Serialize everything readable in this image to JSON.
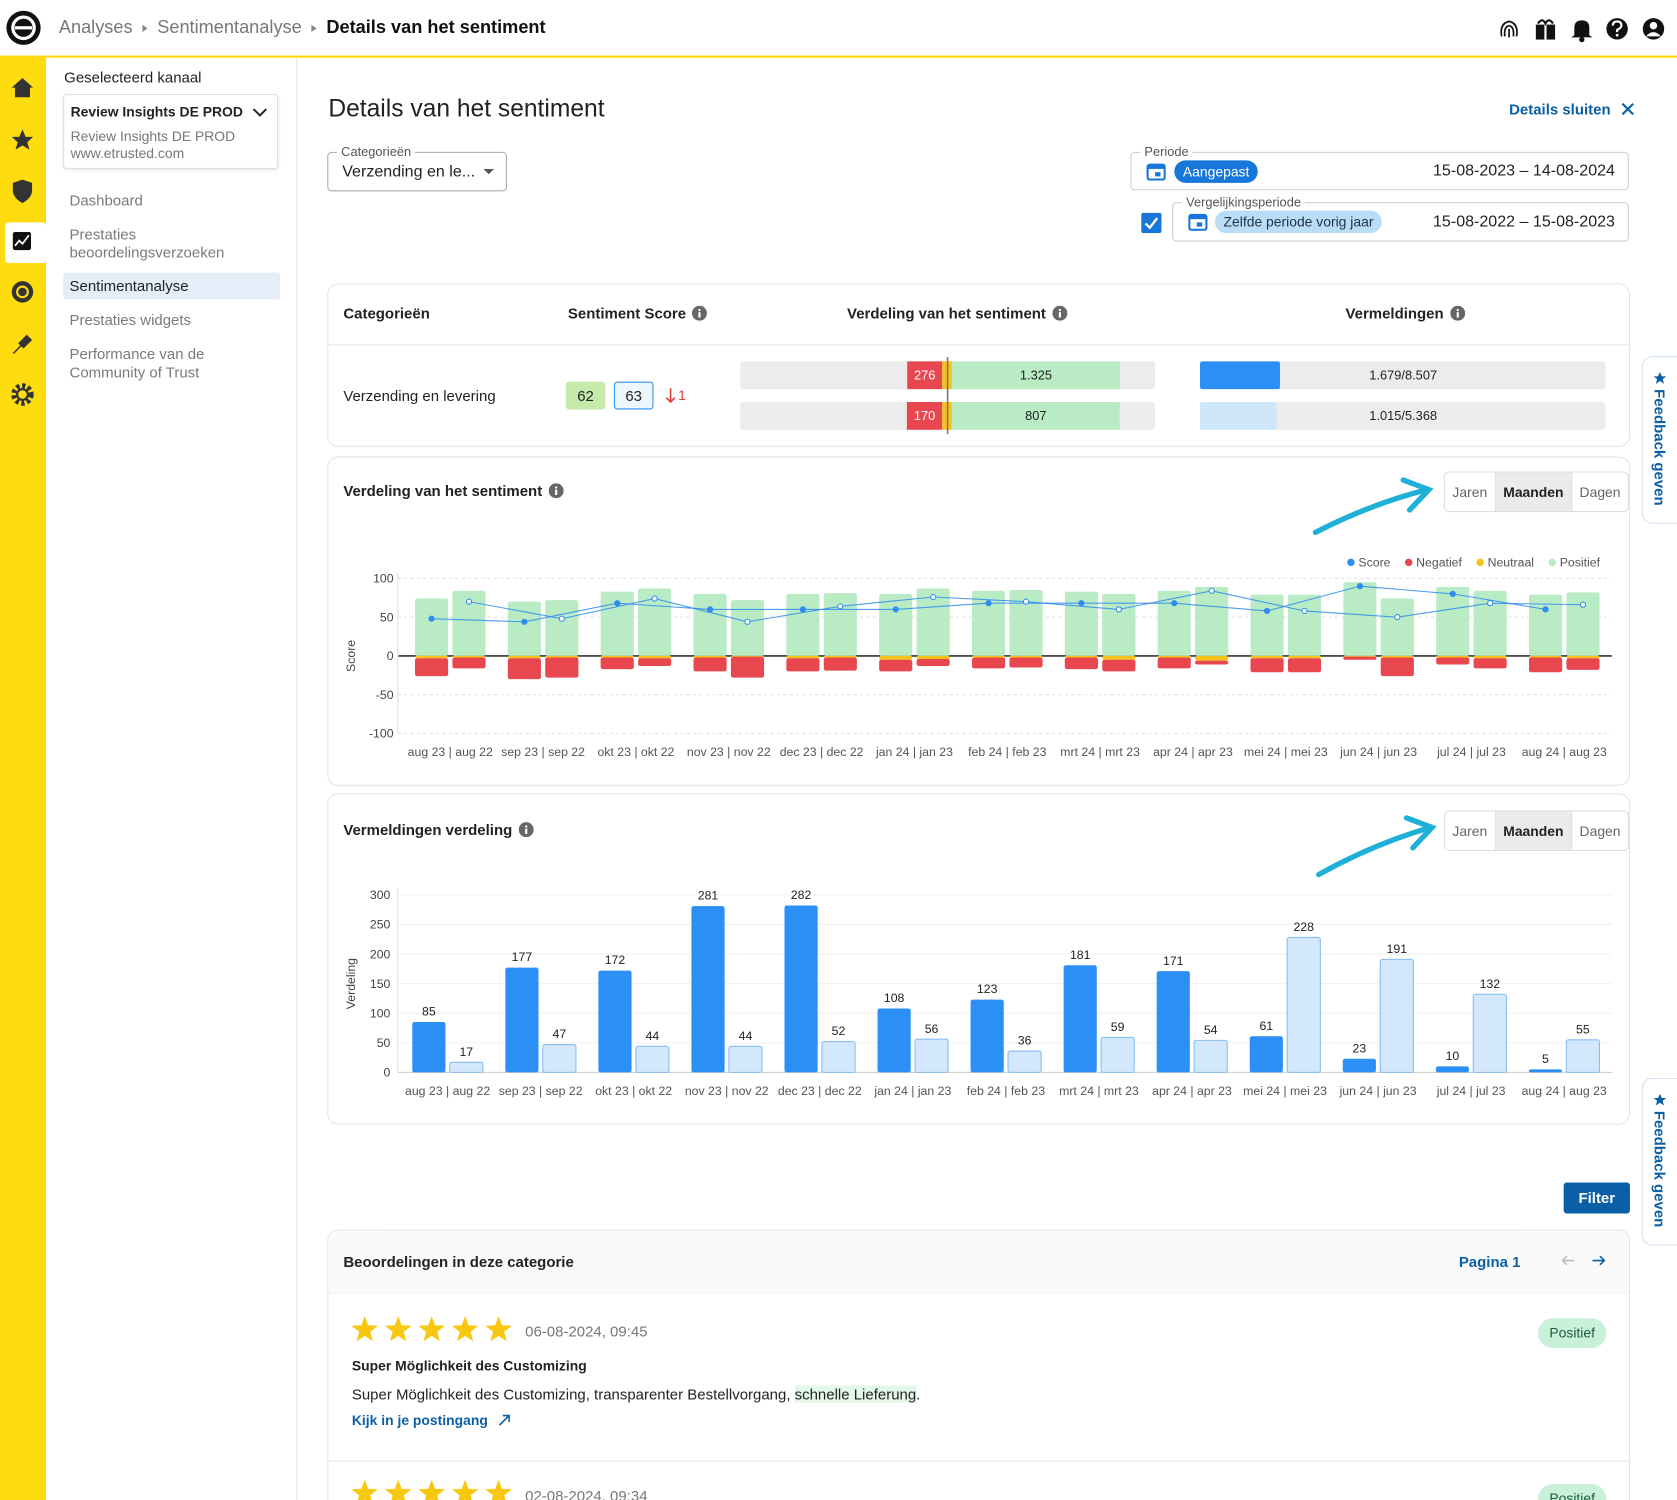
{
  "header": {
    "breadcrumb": [
      "Analyses",
      "Sentimentanalyse",
      "Details van het sentiment"
    ]
  },
  "sidebar": {
    "channel_label": "Geselecteerd kanaal",
    "channel_name": "Review Insights DE PROD",
    "channel_account": "Review Insights DE PROD",
    "channel_domain": "www.etrusted.com",
    "nav": [
      "Dashboard",
      "Prestaties beoordelingsverzoeken",
      "Sentimentanalyse",
      "Prestaties widgets",
      "Performance van de Community of Trust"
    ],
    "active_nav": 2
  },
  "page": {
    "title": "Details van het sentiment",
    "close": "Details sluiten"
  },
  "filters": {
    "category_label": "Categorieën",
    "category_value": "Verzending en le...",
    "period_label": "Periode",
    "period_chip": "Aangepast",
    "period_range": "15-08-2023 – 14-08-2024",
    "comparison_label": "Vergelijkingsperiode",
    "comparison_chip": "Zelfde periode vorig jaar",
    "comparison_range": "15-08-2022 – 15-08-2023",
    "comparison_enabled": true
  },
  "summary_table": {
    "headers": [
      "Categorieën",
      "Sentiment Score",
      "Verdeling van het sentiment",
      "Vermeldingen"
    ],
    "rows": [
      {
        "category": "Verzending en levering",
        "score": 62,
        "comparison_score": 63,
        "change": 1,
        "sentiment": [
          {
            "negative": 276,
            "positive": 1325,
            "positive_label": "1.325"
          },
          {
            "negative": 170,
            "positive": 807
          }
        ],
        "mentions": [
          {
            "count": 1679,
            "total": 8507,
            "label": "1.679/8.507",
            "color": "#2b8ff5"
          },
          {
            "count": 1015,
            "total": 5368,
            "label": "1.015/5.368",
            "color": "#cfe6fb"
          }
        ]
      }
    ]
  },
  "period_toggle": {
    "options": [
      "Jaren",
      "Maanden",
      "Dagen"
    ],
    "active": 1
  },
  "chart_data": [
    {
      "type": "bar",
      "title": "Verdeling van het sentiment",
      "y_label": "Score",
      "categories": [
        "aug 23 | aug 22",
        "sep 23 | sep 22",
        "okt 23 | okt 22",
        "nov 23 | nov 22",
        "dec 23 | dec 22",
        "jan 24 | jan 23",
        "feb 24 | feb 23",
        "mrt 24 | mrt 23",
        "apr 24 | apr 23",
        "mei 24 | mei 23",
        "jun 24 | jun 23",
        "jul 24 | jul 23",
        "aug 24 | aug 23"
      ],
      "ylim": [
        -100,
        100
      ],
      "yticks": [
        -100,
        -50,
        0,
        50,
        100
      ],
      "grid": true,
      "legend": "top-right",
      "series": [
        {
          "name": "Score",
          "type": "line",
          "color": "#2f8cf0",
          "values": [
            48,
            44,
            68,
            60,
            60,
            60,
            68,
            68,
            68,
            58,
            90,
            80,
            60
          ],
          "comparison_values": [
            70,
            48,
            74,
            44,
            64,
            76,
            70,
            60,
            84,
            58,
            50,
            68,
            66
          ]
        },
        {
          "name": "Negatief",
          "color": "#e9474f",
          "values": [
            -23,
            -27,
            -15,
            -18,
            -17,
            -15,
            -14,
            -15,
            -14,
            -18,
            -4,
            -9,
            -19
          ],
          "comparison_values": [
            -14,
            -26,
            -10,
            -27,
            -17,
            -9,
            -13,
            -15,
            -5,
            -18,
            -24,
            -13,
            -15
          ]
        },
        {
          "name": "Neutraal",
          "color": "#f7c21a",
          "values": [
            -3,
            -3,
            -2,
            -2,
            -3,
            -5,
            -2,
            -2,
            -2,
            -3,
            -1,
            -2,
            -2
          ],
          "comparison_values": [
            -2,
            -2,
            -3,
            -1,
            -2,
            -4,
            -2,
            -5,
            -6,
            -3,
            -2,
            -3,
            -3
          ]
        },
        {
          "name": "Positief",
          "color": "#b9ebc5",
          "values": [
            74,
            70,
            83,
            80,
            80,
            80,
            84,
            83,
            84,
            79,
            95,
            89,
            79
          ],
          "comparison_values": [
            84,
            72,
            87,
            72,
            81,
            87,
            85,
            80,
            89,
            79,
            74,
            84,
            82
          ]
        }
      ]
    },
    {
      "type": "bar",
      "title": "Vermeldingen verdeling",
      "y_label": "Verdeling",
      "categories": [
        "aug 23 | aug 22",
        "sep 23 | sep 22",
        "okt 23 | okt 22",
        "nov 23 | nov 22",
        "dec 23 | dec 22",
        "jan 24 | jan 23",
        "feb 24 | feb 23",
        "mrt 24 | mrt 23",
        "apr 24 | apr 23",
        "mei 24 | mei 23",
        "jun 24 | jun 23",
        "jul 24 | jul 23",
        "aug 24 | aug 23"
      ],
      "ylim": [
        0,
        300
      ],
      "yticks": [
        0,
        50,
        100,
        150,
        200,
        250,
        300
      ],
      "grid": true,
      "show_values": true,
      "series": [
        {
          "color": "#2b8ff5",
          "values": [
            85,
            177,
            172,
            281,
            282,
            108,
            123,
            181,
            171,
            61,
            23,
            10,
            5
          ]
        },
        {
          "color": "#d3e8fc",
          "border_color": "#86bdf2",
          "values": [
            17,
            47,
            44,
            44,
            52,
            56,
            36,
            59,
            54,
            228,
            191,
            132,
            55
          ]
        }
      ]
    }
  ],
  "filter_button": "Filter",
  "reviews": {
    "title": "Beoordelingen in deze categorie",
    "page": "Pagina 1",
    "items": [
      {
        "stars": 5,
        "date": "06-08-2024, 09:45",
        "title": "Super Möglichkeit des Customizing",
        "text_before": "Super Möglichkeit des Customizing, transparenter Bestellvorgang, ",
        "highlight": "schnelle Lieferung",
        "text_after": ".",
        "link": "Kijk in je postingang",
        "sentiment": "Positief"
      },
      {
        "stars": 5,
        "date": "02-08-2024, 09:34",
        "sentiment": "Positief"
      }
    ]
  },
  "feedback_tab": "Feedback geven"
}
